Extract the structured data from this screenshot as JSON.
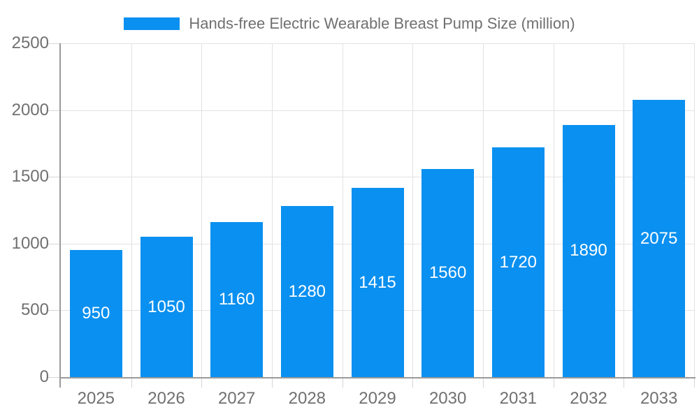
{
  "legend": {
    "label": "Hands-free Electric Wearable Breast Pump Size (million)"
  },
  "chart_data": {
    "type": "bar",
    "title": "Hands-free Electric Wearable Breast Pump Size (million)",
    "categories": [
      "2025",
      "2026",
      "2027",
      "2028",
      "2029",
      "2030",
      "2031",
      "2032",
      "2033"
    ],
    "values": [
      950,
      1050,
      1160,
      1280,
      1415,
      1560,
      1720,
      1890,
      2075
    ],
    "xlabel": "",
    "ylabel": "",
    "ylim": [
      0,
      2500
    ],
    "yticks": [
      0,
      500,
      1000,
      1500,
      2000,
      2500
    ],
    "grid": true,
    "legend_position": "top-center",
    "colors": {
      "bar": "#0a90f0",
      "bar_label": "#ffffff",
      "axis_label": "#707070",
      "grid_line": "#e2e2e2",
      "tick_mark": "#d6d6d6",
      "axis_line": "#9a9a9a",
      "background": "#ffffff"
    }
  }
}
